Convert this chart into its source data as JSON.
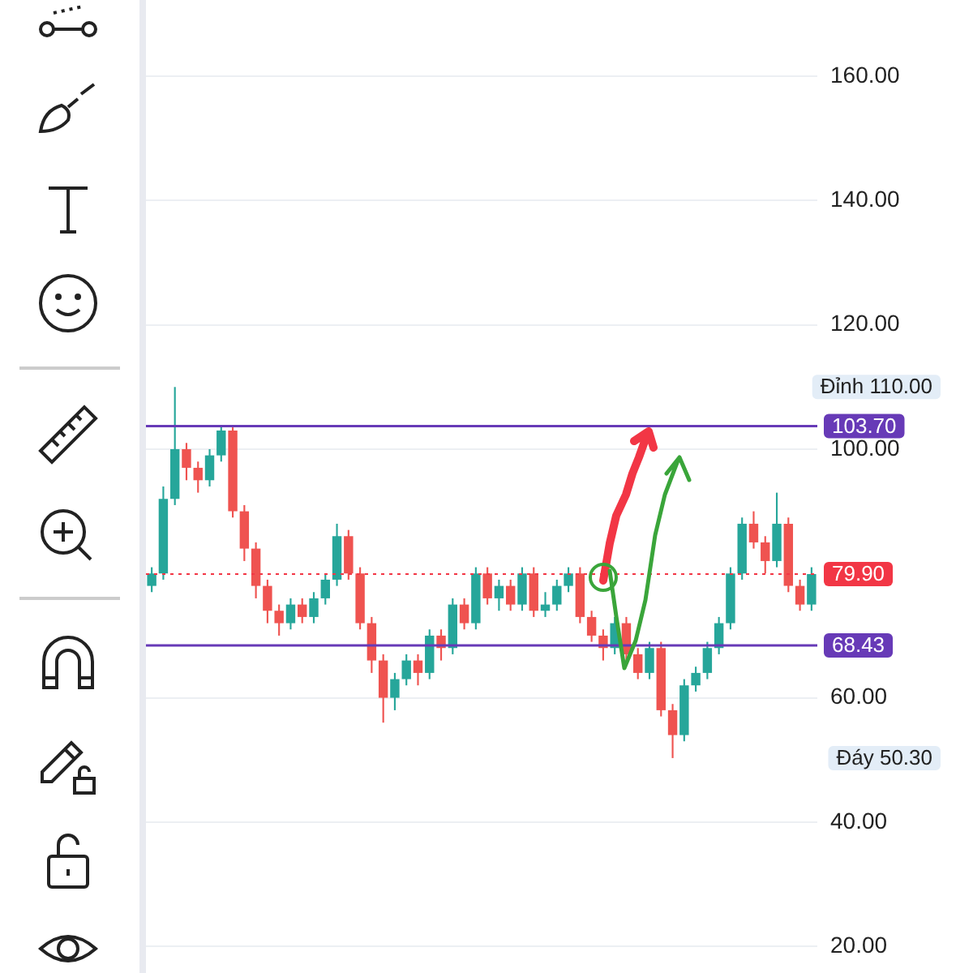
{
  "chart_data": {
    "type": "candlestick",
    "categories": [
      null,
      null,
      null,
      null,
      null,
      null,
      null,
      null,
      null,
      null,
      null,
      null,
      null,
      null,
      null,
      null,
      null,
      null,
      null,
      null,
      null,
      null,
      null,
      null,
      null,
      null,
      null,
      null,
      null,
      null,
      null,
      null,
      null,
      null,
      null,
      null,
      null,
      null,
      null,
      null,
      null,
      null,
      null,
      null,
      null,
      null,
      null,
      null,
      null,
      null,
      null,
      null,
      null,
      null,
      null,
      null,
      null,
      null
    ],
    "ohlc": [
      [
        78,
        81,
        77,
        80
      ],
      [
        80,
        94,
        79,
        92
      ],
      [
        92,
        110,
        91,
        100
      ],
      [
        100,
        101,
        95,
        97
      ],
      [
        97,
        98,
        93,
        95
      ],
      [
        95,
        100,
        94,
        99
      ],
      [
        99,
        103.7,
        98,
        103
      ],
      [
        103,
        103.5,
        89,
        90
      ],
      [
        90,
        91,
        82,
        84
      ],
      [
        84,
        85,
        76,
        78
      ],
      [
        78,
        79,
        72,
        74
      ],
      [
        74,
        75,
        70,
        72
      ],
      [
        72,
        76,
        71,
        75
      ],
      [
        75,
        76,
        72,
        73
      ],
      [
        73,
        77,
        72,
        76
      ],
      [
        76,
        80,
        75,
        79
      ],
      [
        79,
        88,
        78,
        86
      ],
      [
        86,
        87,
        79,
        80
      ],
      [
        80,
        81,
        71,
        72
      ],
      [
        72,
        73,
        64,
        66
      ],
      [
        66,
        67,
        56,
        60
      ],
      [
        60,
        64,
        58,
        63
      ],
      [
        63,
        67,
        62,
        66
      ],
      [
        66,
        67,
        62,
        64
      ],
      [
        64,
        71,
        63,
        70
      ],
      [
        70,
        71,
        66,
        68
      ],
      [
        68,
        76,
        67,
        75
      ],
      [
        75,
        76,
        71,
        72
      ],
      [
        72,
        81,
        71,
        80
      ],
      [
        80,
        81,
        75,
        76
      ],
      [
        76,
        79,
        74,
        78
      ],
      [
        78,
        79,
        74,
        75
      ],
      [
        75,
        81,
        74,
        80
      ],
      [
        80,
        81,
        73,
        74
      ],
      [
        74,
        77,
        73,
        75
      ],
      [
        75,
        79,
        74,
        78
      ],
      [
        78,
        81,
        77,
        80
      ],
      [
        80,
        81,
        72,
        73
      ],
      [
        73,
        74,
        69,
        70
      ],
      [
        70,
        71,
        66,
        68
      ],
      [
        68,
        73,
        67,
        72
      ],
      [
        72,
        73,
        66,
        67
      ],
      [
        67,
        68,
        63,
        64
      ],
      [
        64,
        69,
        63,
        68
      ],
      [
        68,
        69,
        57,
        58
      ],
      [
        58,
        59,
        50.3,
        54
      ],
      [
        54,
        63,
        53,
        62
      ],
      [
        62,
        65,
        61,
        64
      ],
      [
        64,
        69,
        63,
        68
      ],
      [
        68,
        73,
        67,
        72
      ],
      [
        72,
        81,
        71,
        80
      ],
      [
        80,
        89,
        79,
        88
      ],
      [
        88,
        90,
        84,
        85
      ],
      [
        85,
        86,
        80,
        82
      ],
      [
        82,
        93,
        81,
        88
      ],
      [
        88,
        89,
        77,
        78
      ],
      [
        78,
        79,
        74,
        75
      ],
      [
        75,
        81,
        74,
        79.9
      ]
    ],
    "colors": [
      "#26a69a",
      "#26a69a",
      "#26a69a",
      "#ef5350",
      "#ef5350",
      "#26a69a",
      "#26a69a",
      "#ef5350",
      "#ef5350",
      "#ef5350",
      "#ef5350",
      "#ef5350",
      "#26a69a",
      "#ef5350",
      "#26a69a",
      "#26a69a",
      "#26a69a",
      "#ef5350",
      "#ef5350",
      "#ef5350",
      "#ef5350",
      "#26a69a",
      "#26a69a",
      "#ef5350",
      "#26a69a",
      "#ef5350",
      "#26a69a",
      "#ef5350",
      "#26a69a",
      "#ef5350",
      "#26a69a",
      "#ef5350",
      "#26a69a",
      "#ef5350",
      "#26a69a",
      "#26a69a",
      "#26a69a",
      "#ef5350",
      "#ef5350",
      "#ef5350",
      "#26a69a",
      "#ef5350",
      "#ef5350",
      "#26a69a",
      "#ef5350",
      "#ef5350",
      "#26a69a",
      "#26a69a",
      "#26a69a",
      "#26a69a",
      "#26a69a",
      "#26a69a",
      "#ef5350",
      "#ef5350",
      "#26a69a",
      "#ef5350",
      "#ef5350",
      "#26a69a"
    ],
    "ylim": [
      20,
      160
    ],
    "yticks": [
      {
        "value": 20,
        "label": "20.00"
      },
      {
        "value": 40,
        "label": "40.00"
      },
      {
        "value": 60,
        "label": "60.00"
      },
      {
        "value": 100,
        "label": "100.00"
      },
      {
        "value": 120,
        "label": "120.00"
      },
      {
        "value": 140,
        "label": "140.00"
      },
      {
        "value": 160,
        "label": "160.00"
      }
    ],
    "grid": "y",
    "tick_labels": "y",
    "ref_lines": [
      {
        "axis": "y",
        "value": 103.7,
        "label": "103.70",
        "color": "#673ab7",
        "line_style": "solid"
      },
      {
        "axis": "y",
        "value": 68.43,
        "label": "68.43",
        "color": "#673ab7",
        "line_style": "solid"
      },
      {
        "axis": "y",
        "value": 79.9,
        "label": "79.90",
        "color": "#f23645",
        "line_style": "dotted"
      }
    ],
    "annotations": [
      "Đỉnh 110.00",
      "Đáy 50.30"
    ]
  }
}
